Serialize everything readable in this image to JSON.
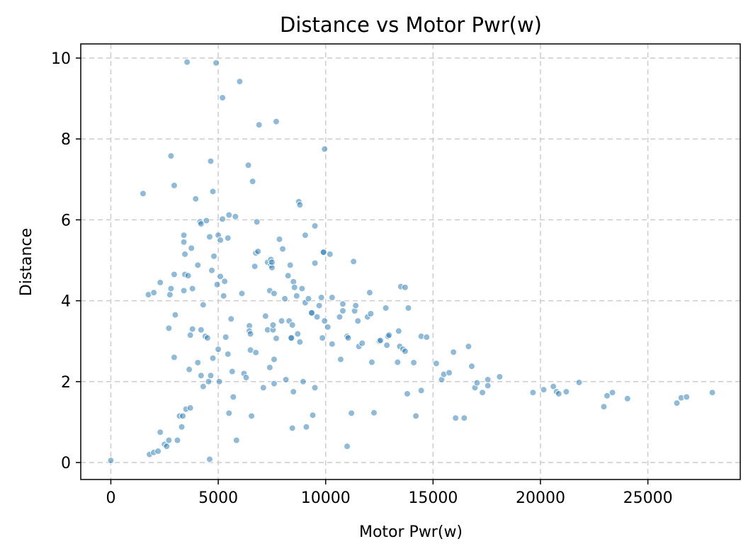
{
  "chart_data": {
    "type": "scatter",
    "title": "Distance vs Motor Pwr(w)",
    "xlabel": "Motor Pwr(w)",
    "ylabel": "Distance",
    "xlim": [
      -1400,
      29300
    ],
    "ylim": [
      -0.42,
      10.35
    ],
    "xticks": [
      0,
      5000,
      10000,
      15000,
      20000,
      25000
    ],
    "yticks": [
      0,
      2,
      4,
      6,
      8,
      10
    ],
    "grid": true,
    "color": "#1f77b4",
    "points": [
      [
        0,
        0.05
      ],
      [
        1500,
        6.65
      ],
      [
        1750,
        4.15
      ],
      [
        1800,
        0.2
      ],
      [
        2000,
        4.2
      ],
      [
        2000,
        0.25
      ],
      [
        2200,
        0.28
      ],
      [
        2300,
        4.45
      ],
      [
        2300,
        0.75
      ],
      [
        2500,
        0.45
      ],
      [
        2600,
        0.4
      ],
      [
        2700,
        0.55
      ],
      [
        2700,
        3.32
      ],
      [
        2750,
        4.15
      ],
      [
        2800,
        4.3
      ],
      [
        2800,
        7.58
      ],
      [
        2950,
        6.85
      ],
      [
        2950,
        4.65
      ],
      [
        3000,
        3.65
      ],
      [
        2950,
        2.6
      ],
      [
        3100,
        0.55
      ],
      [
        3200,
        1.15
      ],
      [
        3300,
        0.88
      ],
      [
        3350,
        1.15
      ],
      [
        3400,
        5.45
      ],
      [
        3400,
        5.62
      ],
      [
        3400,
        4.25
      ],
      [
        3450,
        5.15
      ],
      [
        3450,
        4.65
      ],
      [
        3500,
        1.32
      ],
      [
        3550,
        9.9
      ],
      [
        3600,
        4.62
      ],
      [
        3700,
        1.35
      ],
      [
        3650,
        2.3
      ],
      [
        3700,
        3.15
      ],
      [
        3750,
        5.3
      ],
      [
        3800,
        4.3
      ],
      [
        3800,
        3.3
      ],
      [
        3950,
        6.52
      ],
      [
        4050,
        4.88
      ],
      [
        4050,
        2.47
      ],
      [
        4150,
        5.95
      ],
      [
        4200,
        5.9
      ],
      [
        4200,
        3.28
      ],
      [
        4200,
        2.15
      ],
      [
        4300,
        3.9
      ],
      [
        4300,
        1.88
      ],
      [
        4400,
        3.12
      ],
      [
        4450,
        5.98
      ],
      [
        4500,
        3.08
      ],
      [
        4550,
        2.0
      ],
      [
        4600,
        0.08
      ],
      [
        4600,
        5.58
      ],
      [
        4650,
        2.15
      ],
      [
        4650,
        7.45
      ],
      [
        4700,
        4.75
      ],
      [
        4750,
        6.7
      ],
      [
        4750,
        2.58
      ],
      [
        4800,
        5.1
      ],
      [
        4900,
        9.88
      ],
      [
        4950,
        4.4
      ],
      [
        5000,
        5.62
      ],
      [
        5000,
        2.8
      ],
      [
        5050,
        2.0
      ],
      [
        5100,
        4.6
      ],
      [
        5100,
        5.5
      ],
      [
        5200,
        9.02
      ],
      [
        5200,
        6.02
      ],
      [
        5250,
        4.12
      ],
      [
        5300,
        4.48
      ],
      [
        5350,
        3.1
      ],
      [
        5450,
        5.55
      ],
      [
        5450,
        2.68
      ],
      [
        5500,
        6.12
      ],
      [
        5500,
        1.22
      ],
      [
        5600,
        3.55
      ],
      [
        5650,
        2.25
      ],
      [
        5700,
        1.62
      ],
      [
        5800,
        6.08
      ],
      [
        5850,
        0.55
      ],
      [
        6000,
        9.42
      ],
      [
        6100,
        4.18
      ],
      [
        6200,
        2.2
      ],
      [
        6300,
        2.1
      ],
      [
        6400,
        7.35
      ],
      [
        6450,
        3.38
      ],
      [
        6450,
        3.25
      ],
      [
        6500,
        3.18
      ],
      [
        6500,
        2.78
      ],
      [
        6550,
        1.15
      ],
      [
        6600,
        6.95
      ],
      [
        6700,
        4.85
      ],
      [
        6750,
        5.18
      ],
      [
        6750,
        2.72
      ],
      [
        6800,
        5.95
      ],
      [
        6850,
        5.22
      ],
      [
        6900,
        8.35
      ],
      [
        7100,
        1.85
      ],
      [
        7200,
        3.62
      ],
      [
        7300,
        3.28
      ],
      [
        7300,
        4.95
      ],
      [
        7400,
        4.25
      ],
      [
        7450,
        5.02
      ],
      [
        7450,
        4.88
      ],
      [
        7400,
        2.35
      ],
      [
        7500,
        4.82
      ],
      [
        7500,
        4.95
      ],
      [
        7550,
        3.28
      ],
      [
        7600,
        4.18
      ],
      [
        7550,
        3.4
      ],
      [
        7600,
        2.55
      ],
      [
        7600,
        1.95
      ],
      [
        7700,
        8.43
      ],
      [
        7700,
        3.07
      ],
      [
        7850,
        5.52
      ],
      [
        7950,
        3.5
      ],
      [
        8000,
        5.28
      ],
      [
        8100,
        4.05
      ],
      [
        8150,
        2.05
      ],
      [
        8250,
        4.62
      ],
      [
        8300,
        3.5
      ],
      [
        8350,
        4.88
      ],
      [
        8400,
        3.08
      ],
      [
        8400,
        3.08
      ],
      [
        8450,
        3.4
      ],
      [
        8500,
        4.47
      ],
      [
        8500,
        1.75
      ],
      [
        8450,
        0.85
      ],
      [
        8550,
        4.33
      ],
      [
        8650,
        4.12
      ],
      [
        8750,
        6.45
      ],
      [
        8800,
        6.37
      ],
      [
        8700,
        3.18
      ],
      [
        8800,
        2.98
      ],
      [
        8900,
        4.3
      ],
      [
        8950,
        2.0
      ],
      [
        9050,
        3.95
      ],
      [
        9050,
        5.62
      ],
      [
        9100,
        0.88
      ],
      [
        9200,
        4.05
      ],
      [
        9350,
        3.7
      ],
      [
        9350,
        3.7
      ],
      [
        9400,
        1.17
      ],
      [
        9500,
        5.85
      ],
      [
        9500,
        4.93
      ],
      [
        9500,
        1.85
      ],
      [
        9600,
        3.6
      ],
      [
        9700,
        3.88
      ],
      [
        9800,
        4.08
      ],
      [
        9850,
        3.08
      ],
      [
        9900,
        5.2
      ],
      [
        9900,
        5.2
      ],
      [
        9950,
        3.5
      ],
      [
        9950,
        7.75
      ],
      [
        10100,
        3.35
      ],
      [
        10200,
        5.15
      ],
      [
        10300,
        4.08
      ],
      [
        10300,
        2.93
      ],
      [
        10650,
        3.6
      ],
      [
        10700,
        2.55
      ],
      [
        10800,
        3.75
      ],
      [
        10800,
        3.92
      ],
      [
        11000,
        3.12
      ],
      [
        11000,
        0.4
      ],
      [
        11050,
        3.08
      ],
      [
        11200,
        1.22
      ],
      [
        11300,
        4.97
      ],
      [
        11350,
        3.75
      ],
      [
        11400,
        3.88
      ],
      [
        11500,
        3.5
      ],
      [
        11550,
        2.87
      ],
      [
        11700,
        2.95
      ],
      [
        11950,
        3.6
      ],
      [
        12050,
        4.2
      ],
      [
        12100,
        3.68
      ],
      [
        12150,
        2.48
      ],
      [
        12250,
        1.23
      ],
      [
        12500,
        3.0
      ],
      [
        12550,
        3.02
      ],
      [
        12800,
        3.82
      ],
      [
        12850,
        2.9
      ],
      [
        12900,
        3.12
      ],
      [
        12950,
        3.15
      ],
      [
        13350,
        2.48
      ],
      [
        13400,
        3.25
      ],
      [
        13450,
        2.87
      ],
      [
        13500,
        4.35
      ],
      [
        13600,
        2.8
      ],
      [
        13700,
        2.75
      ],
      [
        13700,
        4.33
      ],
      [
        13800,
        1.7
      ],
      [
        13850,
        3.82
      ],
      [
        14100,
        2.47
      ],
      [
        14200,
        1.15
      ],
      [
        14450,
        1.78
      ],
      [
        14450,
        3.12
      ],
      [
        14700,
        3.1
      ],
      [
        15150,
        2.45
      ],
      [
        15400,
        2.05
      ],
      [
        15500,
        2.18
      ],
      [
        15750,
        2.22
      ],
      [
        15950,
        2.73
      ],
      [
        16050,
        1.1
      ],
      [
        16450,
        1.1
      ],
      [
        16650,
        2.87
      ],
      [
        16800,
        2.38
      ],
      [
        16950,
        1.85
      ],
      [
        17050,
        1.97
      ],
      [
        17300,
        1.73
      ],
      [
        17550,
        2.05
      ],
      [
        17550,
        1.9
      ],
      [
        18100,
        2.12
      ],
      [
        19650,
        1.73
      ],
      [
        20150,
        1.8
      ],
      [
        20600,
        1.88
      ],
      [
        20750,
        1.75
      ],
      [
        20850,
        1.7
      ],
      [
        21200,
        1.75
      ],
      [
        21800,
        1.98
      ],
      [
        22950,
        1.38
      ],
      [
        23100,
        1.65
      ],
      [
        23350,
        1.73
      ],
      [
        24050,
        1.58
      ],
      [
        26350,
        1.47
      ],
      [
        26550,
        1.6
      ],
      [
        26800,
        1.62
      ],
      [
        28000,
        1.73
      ]
    ]
  }
}
